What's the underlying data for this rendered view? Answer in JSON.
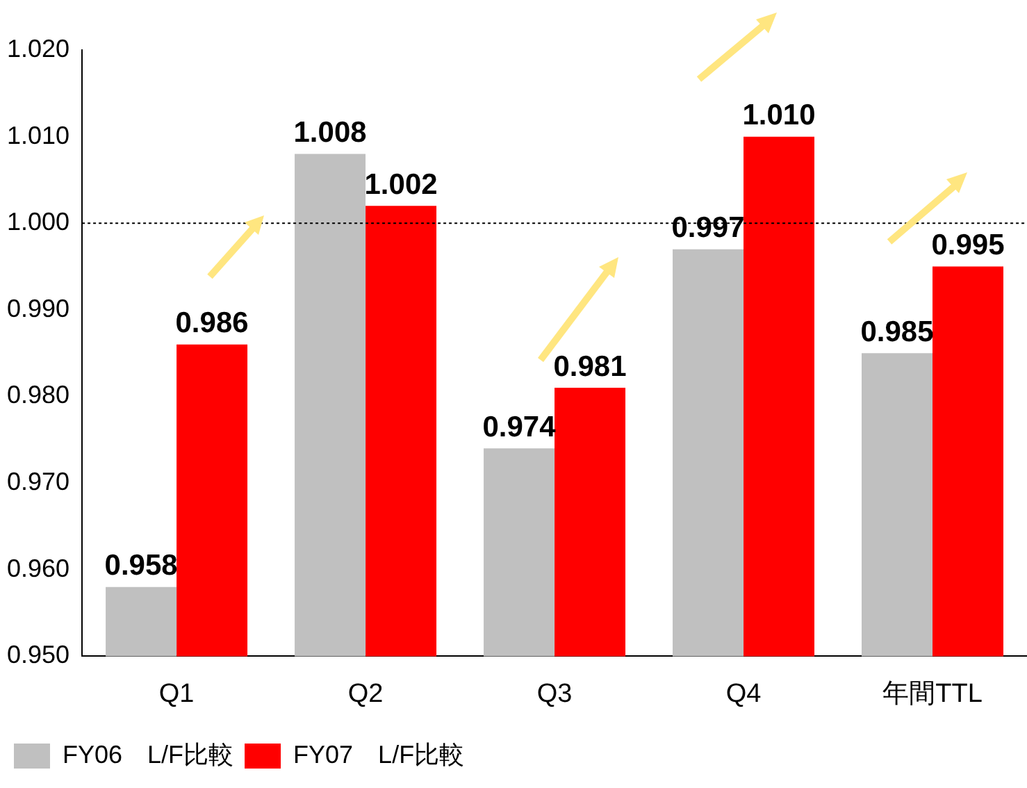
{
  "chart_data": {
    "type": "bar",
    "categories": [
      "Q1",
      "Q2",
      "Q3",
      "Q4",
      "年間TTL"
    ],
    "series": [
      {
        "name": "FY06　L/F比較",
        "color": "#c0c0c0",
        "values": [
          0.958,
          1.008,
          0.974,
          0.997,
          0.985
        ],
        "value_labels": [
          "0.958",
          "1.008",
          "0.974",
          "0.997",
          "0.985"
        ]
      },
      {
        "name": "FY07　L/F比較",
        "color": "#ff0000",
        "values": [
          0.986,
          1.002,
          0.981,
          1.01,
          0.995
        ],
        "value_labels": [
          "0.986",
          "1.002",
          "0.981",
          "1.010",
          "0.995"
        ]
      }
    ],
    "ylim": [
      0.95,
      1.02
    ],
    "yticks": [
      {
        "value": 0.95,
        "label": "0.950"
      },
      {
        "value": 0.96,
        "label": "0.960"
      },
      {
        "value": 0.97,
        "label": "0.970"
      },
      {
        "value": 0.98,
        "label": "0.980"
      },
      {
        "value": 0.99,
        "label": "0.990"
      },
      {
        "value": 1.0,
        "label": "1.000"
      },
      {
        "value": 1.01,
        "label": "1.010"
      },
      {
        "value": 1.02,
        "label": "1.020"
      }
    ],
    "ref_lines": [
      {
        "axis": "y",
        "value": 1.0,
        "color": "#000000",
        "line_style": "dotted"
      }
    ],
    "grid": false,
    "legend": "bottom"
  }
}
